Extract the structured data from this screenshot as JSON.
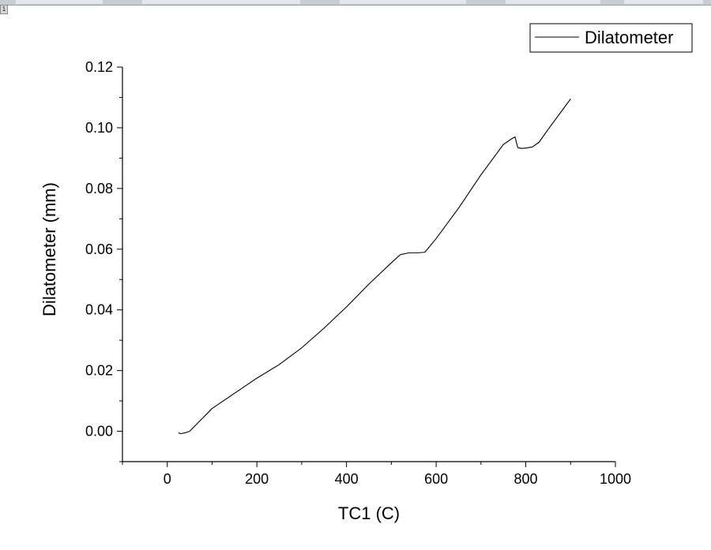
{
  "window": {
    "corner_badge": "1"
  },
  "chart_data": {
    "type": "line",
    "title": "",
    "xlabel": "TC1 (C)",
    "ylabel": "Dilatometer (mm)",
    "xlim": [
      -100,
      1000
    ],
    "ylim": [
      -0.01,
      0.12
    ],
    "x_ticks": [
      0,
      200,
      400,
      600,
      800,
      1000
    ],
    "x_tick_labels": [
      "0",
      "200",
      "400",
      "600",
      "800",
      "1000"
    ],
    "y_ticks": [
      0.0,
      0.02,
      0.04,
      0.06,
      0.08,
      0.1,
      0.12
    ],
    "y_tick_labels": [
      "0.00",
      "0.02",
      "0.04",
      "0.06",
      "0.08",
      "0.10",
      "0.12"
    ],
    "grid": false,
    "legend_position": "top-right",
    "series": [
      {
        "name": "Dilatometer",
        "color": "#000000",
        "x": [
          25,
          30,
          40,
          50,
          60,
          80,
          100,
          150,
          200,
          250,
          300,
          350,
          400,
          450,
          500,
          520,
          540,
          560,
          575,
          600,
          650,
          700,
          750,
          770,
          776,
          782,
          790,
          800,
          815,
          830,
          850,
          875,
          900
        ],
        "y": [
          -0.0005,
          -0.0008,
          -0.0005,
          0.0,
          0.0015,
          0.0045,
          0.0075,
          0.0125,
          0.0175,
          0.022,
          0.0275,
          0.034,
          0.041,
          0.0485,
          0.0555,
          0.0582,
          0.0588,
          0.0588,
          0.059,
          0.0635,
          0.0735,
          0.0845,
          0.0945,
          0.0965,
          0.097,
          0.0935,
          0.0932,
          0.0933,
          0.0937,
          0.0953,
          0.0995,
          0.1045,
          0.1095
        ]
      }
    ]
  }
}
